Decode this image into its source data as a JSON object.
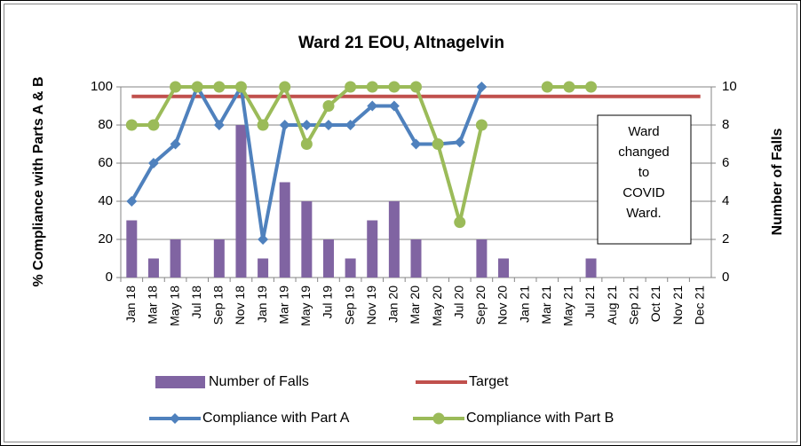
{
  "chart_data": {
    "type": "bar",
    "title": "Ward 21 EOU, Altnagelvin",
    "y_label": "% Compliance with Parts A & B",
    "y2_label": "Number of Falls",
    "categories": [
      "Jan 18",
      "Mar 18",
      "May 18",
      "Jul 18",
      "Sep 18",
      "Nov 18",
      "Jan 19",
      "Mar 19",
      "May 19",
      "Jul 19",
      "Sep 19",
      "Nov 19",
      "Jan 20",
      "Mar 20",
      "May 20",
      "Jul 20",
      "Sep 20",
      "Nov 20",
      "Jan 21",
      "Mar 21",
      "May 21",
      "Jul 21",
      "Aug 21",
      "Sep 21",
      "Oct 21",
      "Nov 21",
      "Dec 21"
    ],
    "series": [
      {
        "name": "Number of Falls",
        "type": "bar",
        "axis": "y2",
        "color": "#8064a2",
        "values": [
          3,
          1,
          2,
          0,
          2,
          8,
          1,
          5,
          4,
          2,
          1,
          3,
          4,
          2,
          0,
          0,
          2,
          1,
          0,
          0,
          0,
          1,
          null,
          null,
          null,
          null,
          null
        ]
      },
      {
        "name": "Target",
        "type": "line",
        "color": "#c0504d",
        "values": [
          95,
          95,
          95,
          95,
          95,
          95,
          95,
          95,
          95,
          95,
          95,
          95,
          95,
          95,
          95,
          95,
          95,
          95,
          95,
          95,
          95,
          95,
          95,
          95,
          95,
          95,
          95
        ]
      },
      {
        "name": "Compliance with Part A",
        "type": "line",
        "marker": "diamond",
        "color": "#4f81bd",
        "values": [
          40,
          60,
          70,
          100,
          80,
          100,
          20,
          80,
          80,
          80,
          80,
          90,
          90,
          70,
          70,
          71,
          100,
          null,
          null,
          null,
          null,
          null,
          null,
          null,
          null,
          null,
          null
        ]
      },
      {
        "name": "Compliance with Part B",
        "type": "line",
        "marker": "circle",
        "color": "#9bbb59",
        "values": [
          80,
          80,
          100,
          100,
          100,
          100,
          80,
          100,
          70,
          90,
          100,
          100,
          100,
          100,
          70,
          29,
          80,
          null,
          null,
          100,
          100,
          100,
          null,
          null,
          null,
          null,
          null
        ]
      }
    ],
    "ylim": [
      0,
      100
    ],
    "yticks": [
      0,
      20,
      40,
      60,
      80,
      100
    ],
    "y2lim": [
      0,
      10
    ],
    "y2ticks": [
      0,
      2,
      4,
      6,
      8,
      10
    ],
    "grid": true,
    "legend": "bottom",
    "annotation": [
      "Ward",
      "changed",
      "to",
      "COVID",
      "Ward."
    ]
  }
}
